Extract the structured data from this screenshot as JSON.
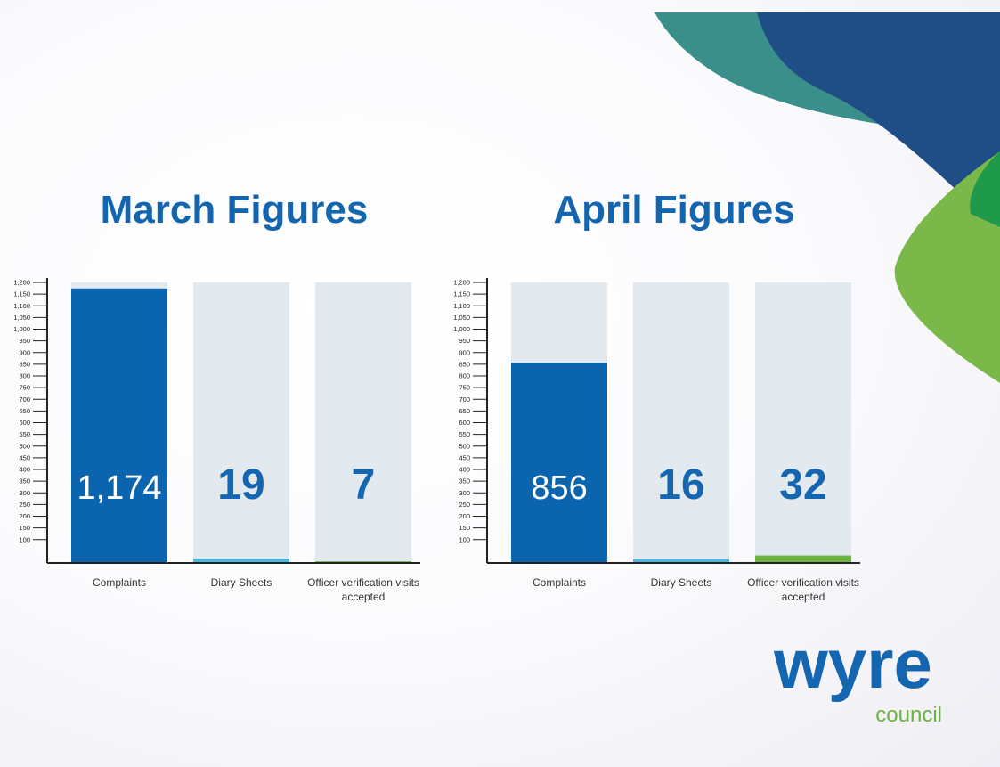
{
  "chart_data": [
    {
      "type": "bar",
      "title": "March Figures",
      "categories": [
        "Complaints",
        "Diary Sheets",
        "Officer verification visits accepted"
      ],
      "values": [
        1174,
        19,
        7
      ],
      "value_labels": [
        "1,174",
        "19",
        "7"
      ],
      "colors": [
        "#0a64ae",
        "#4bb6de",
        "#6cb33f"
      ],
      "ylim": [
        0,
        1200
      ],
      "yticks": [
        100,
        150,
        200,
        250,
        300,
        350,
        400,
        450,
        500,
        550,
        600,
        650,
        700,
        750,
        800,
        850,
        900,
        950,
        {
          "value": 1000,
          "label": "1,000"
        },
        {
          "value": 1050,
          "label": "1,050"
        },
        {
          "value": 1100,
          "label": "1,100"
        },
        {
          "value": 1150,
          "label": "1,150"
        },
        {
          "value": 1200,
          "label": "1,200"
        }
      ]
    },
    {
      "type": "bar",
      "title": "April Figures",
      "categories": [
        "Complaints",
        "Diary Sheets",
        "Officer verification visits accepted"
      ],
      "values": [
        856,
        16,
        32
      ],
      "colors": [
        "#0a64ae",
        "#4bb6de",
        "#6cb33f"
      ],
      "ylim": [
        0,
        1200
      ],
      "yticks": [
        100,
        150,
        200,
        250,
        300,
        350,
        400,
        450,
        500,
        550,
        600,
        650,
        700,
        750,
        800,
        850,
        900,
        950,
        {
          "value": 1000,
          "label": "1,000"
        },
        {
          "value": 1050,
          "label": "1,050"
        },
        {
          "value": 1100,
          "label": "1,100"
        },
        {
          "value": 1150,
          "label": "1,150"
        },
        {
          "value": 1200,
          "label": "1,200"
        }
      ]
    }
  ],
  "logo": {
    "text": "wyre",
    "subtext": "council"
  }
}
